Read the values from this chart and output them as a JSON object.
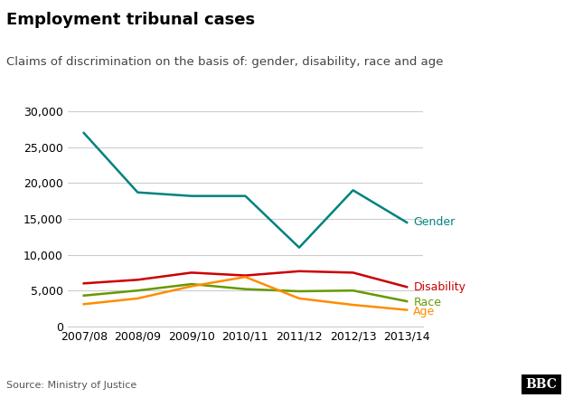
{
  "title": "Employment tribunal cases",
  "subtitle": "Claims of discrimination on the basis of: gender, disability, race and age",
  "source": "Source: Ministry of Justice",
  "x_labels": [
    "2007/08",
    "2008/09",
    "2009/10",
    "2010/11",
    "2011/12",
    "2012/13",
    "2013/14"
  ],
  "series": {
    "Gender": [
      27000,
      18700,
      18200,
      18200,
      11000,
      19000,
      14500
    ],
    "Disability": [
      6000,
      6500,
      7500,
      7100,
      7700,
      7500,
      5500
    ],
    "Race": [
      4300,
      5000,
      5900,
      5200,
      4900,
      5000,
      3500
    ],
    "Age": [
      3100,
      3900,
      5600,
      6900,
      3900,
      3000,
      2300
    ]
  },
  "colors": {
    "Gender": "#00827F",
    "Disability": "#CC0000",
    "Race": "#669900",
    "Age": "#FF8C00"
  },
  "ylim": [
    0,
    30000
  ],
  "yticks": [
    0,
    5000,
    10000,
    15000,
    20000,
    25000,
    30000
  ],
  "background_color": "#ffffff",
  "plot_bg_color": "#ffffff",
  "grid_color": "#cccccc",
  "title_fontsize": 13,
  "subtitle_fontsize": 9.5,
  "axis_fontsize": 9,
  "label_fontsize": 9,
  "source_fontsize": 8,
  "bbc_logo": "BBC"
}
